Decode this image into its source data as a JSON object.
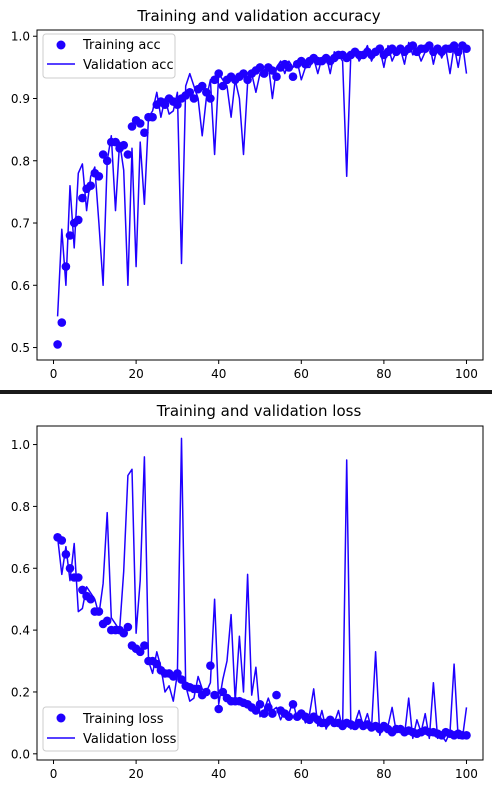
{
  "colors": {
    "series": "#1f00ff",
    "divider": "#1a1a1a"
  },
  "chart_data": [
    {
      "type": "line",
      "title": "Training and validation accuracy",
      "xlabel": "",
      "ylabel": "",
      "xlim": [
        -4,
        104
      ],
      "ylim": [
        0.48,
        1.01
      ],
      "xticks": [
        0,
        20,
        40,
        60,
        80,
        100
      ],
      "yticks": [
        0.5,
        0.6,
        0.7,
        0.8,
        0.9,
        1.0
      ],
      "ytick_labels": [
        "0.5",
        "0.6",
        "0.7",
        "0.8",
        "0.9",
        "1.0"
      ],
      "grid": false,
      "legend": "top-left",
      "series": [
        {
          "name": "Training acc",
          "style": "dots",
          "x": [
            1,
            2,
            3,
            4,
            5,
            6,
            7,
            8,
            9,
            10,
            11,
            12,
            13,
            14,
            15,
            16,
            17,
            18,
            19,
            20,
            21,
            22,
            23,
            24,
            25,
            26,
            27,
            28,
            29,
            30,
            31,
            32,
            33,
            34,
            35,
            36,
            37,
            38,
            39,
            40,
            41,
            42,
            43,
            44,
            45,
            46,
            47,
            48,
            49,
            50,
            51,
            52,
            53,
            54,
            55,
            56,
            57,
            58,
            59,
            60,
            61,
            62,
            63,
            64,
            65,
            66,
            67,
            68,
            69,
            70,
            71,
            72,
            73,
            74,
            75,
            76,
            77,
            78,
            79,
            80,
            81,
            82,
            83,
            84,
            85,
            86,
            87,
            88,
            89,
            90,
            91,
            92,
            93,
            94,
            95,
            96,
            97,
            98,
            99,
            100
          ],
          "values": [
            0.505,
            0.54,
            0.63,
            0.68,
            0.7,
            0.705,
            0.74,
            0.755,
            0.76,
            0.78,
            0.775,
            0.81,
            0.8,
            0.83,
            0.83,
            0.82,
            0.825,
            0.81,
            0.855,
            0.865,
            0.86,
            0.845,
            0.87,
            0.87,
            0.89,
            0.895,
            0.89,
            0.9,
            0.895,
            0.89,
            0.9,
            0.905,
            0.91,
            0.9,
            0.915,
            0.92,
            0.91,
            0.9,
            0.93,
            0.94,
            0.92,
            0.93,
            0.935,
            0.93,
            0.935,
            0.94,
            0.93,
            0.94,
            0.945,
            0.95,
            0.94,
            0.95,
            0.945,
            0.935,
            0.95,
            0.955,
            0.95,
            0.935,
            0.955,
            0.96,
            0.955,
            0.96,
            0.965,
            0.96,
            0.96,
            0.965,
            0.96,
            0.965,
            0.97,
            0.97,
            0.965,
            0.97,
            0.975,
            0.97,
            0.97,
            0.975,
            0.97,
            0.975,
            0.98,
            0.97,
            0.975,
            0.98,
            0.975,
            0.98,
            0.975,
            0.98,
            0.985,
            0.975,
            0.98,
            0.98,
            0.985,
            0.975,
            0.98,
            0.975,
            0.98,
            0.98,
            0.985,
            0.975,
            0.985,
            0.98
          ]
        },
        {
          "name": "Validation acc",
          "style": "line",
          "x": [
            1,
            2,
            3,
            4,
            5,
            6,
            7,
            8,
            9,
            10,
            11,
            12,
            13,
            14,
            15,
            16,
            17,
            18,
            19,
            20,
            21,
            22,
            23,
            24,
            25,
            26,
            27,
            28,
            29,
            30,
            31,
            32,
            33,
            34,
            35,
            36,
            37,
            38,
            39,
            40,
            41,
            42,
            43,
            44,
            45,
            46,
            47,
            48,
            49,
            50,
            51,
            52,
            53,
            54,
            55,
            56,
            57,
            58,
            59,
            60,
            61,
            62,
            63,
            64,
            65,
            66,
            67,
            68,
            69,
            70,
            71,
            72,
            73,
            74,
            75,
            76,
            77,
            78,
            79,
            80,
            81,
            82,
            83,
            84,
            85,
            86,
            87,
            88,
            89,
            90,
            91,
            92,
            93,
            94,
            95,
            96,
            97,
            98,
            99,
            100
          ],
          "values": [
            0.55,
            0.69,
            0.6,
            0.76,
            0.66,
            0.78,
            0.795,
            0.72,
            0.775,
            0.79,
            0.7,
            0.6,
            0.8,
            0.84,
            0.72,
            0.83,
            0.785,
            0.6,
            0.82,
            0.63,
            0.83,
            0.73,
            0.87,
            0.88,
            0.91,
            0.87,
            0.9,
            0.875,
            0.88,
            0.91,
            0.635,
            0.92,
            0.94,
            0.92,
            0.9,
            0.84,
            0.9,
            0.93,
            0.81,
            0.94,
            0.93,
            0.92,
            0.87,
            0.93,
            0.9,
            0.81,
            0.925,
            0.94,
            0.91,
            0.94,
            0.945,
            0.955,
            0.9,
            0.95,
            0.96,
            0.94,
            0.96,
            0.95,
            0.96,
            0.93,
            0.95,
            0.95,
            0.965,
            0.94,
            0.965,
            0.97,
            0.94,
            0.975,
            0.97,
            0.96,
            0.775,
            0.975,
            0.98,
            0.96,
            0.97,
            0.985,
            0.96,
            0.975,
            0.98,
            0.95,
            0.985,
            0.96,
            0.975,
            0.98,
            0.955,
            0.99,
            0.97,
            0.98,
            0.96,
            0.975,
            0.99,
            0.955,
            0.985,
            0.965,
            0.98,
            0.94,
            0.985,
            0.95,
            0.99,
            0.94
          ]
        }
      ]
    },
    {
      "type": "line",
      "title": "Training and validation loss",
      "xlabel": "",
      "ylabel": "",
      "xlim": [
        -4,
        104
      ],
      "ylim": [
        -0.02,
        1.06
      ],
      "xticks": [
        0,
        20,
        40,
        60,
        80,
        100
      ],
      "yticks": [
        0.0,
        0.2,
        0.4,
        0.6,
        0.8,
        1.0
      ],
      "ytick_labels": [
        "0.0",
        "0.2",
        "0.4",
        "0.6",
        "0.8",
        "1.0"
      ],
      "grid": false,
      "legend": "bottom-left",
      "series": [
        {
          "name": "Training loss",
          "style": "dots",
          "x": [
            1,
            2,
            3,
            4,
            5,
            6,
            7,
            8,
            9,
            10,
            11,
            12,
            13,
            14,
            15,
            16,
            17,
            18,
            19,
            20,
            21,
            22,
            23,
            24,
            25,
            26,
            27,
            28,
            29,
            30,
            31,
            32,
            33,
            34,
            35,
            36,
            37,
            38,
            39,
            40,
            41,
            42,
            43,
            44,
            45,
            46,
            47,
            48,
            49,
            50,
            51,
            52,
            53,
            54,
            55,
            56,
            57,
            58,
            59,
            60,
            61,
            62,
            63,
            64,
            65,
            66,
            67,
            68,
            69,
            70,
            71,
            72,
            73,
            74,
            75,
            76,
            77,
            78,
            79,
            80,
            81,
            82,
            83,
            84,
            85,
            86,
            87,
            88,
            89,
            90,
            91,
            92,
            93,
            94,
            95,
            96,
            97,
            98,
            99,
            100
          ],
          "values": [
            0.7,
            0.69,
            0.645,
            0.6,
            0.57,
            0.57,
            0.53,
            0.51,
            0.5,
            0.46,
            0.46,
            0.42,
            0.43,
            0.4,
            0.4,
            0.4,
            0.39,
            0.41,
            0.35,
            0.34,
            0.33,
            0.35,
            0.3,
            0.3,
            0.29,
            0.27,
            0.26,
            0.26,
            0.25,
            0.26,
            0.24,
            0.22,
            0.215,
            0.21,
            0.21,
            0.19,
            0.2,
            0.285,
            0.19,
            0.145,
            0.2,
            0.18,
            0.17,
            0.17,
            0.17,
            0.165,
            0.16,
            0.15,
            0.14,
            0.16,
            0.13,
            0.15,
            0.13,
            0.19,
            0.14,
            0.13,
            0.12,
            0.16,
            0.12,
            0.13,
            0.12,
            0.11,
            0.12,
            0.11,
            0.1,
            0.1,
            0.11,
            0.1,
            0.1,
            0.09,
            0.1,
            0.095,
            0.09,
            0.1,
            0.09,
            0.095,
            0.085,
            0.09,
            0.08,
            0.09,
            0.08,
            0.07,
            0.08,
            0.08,
            0.07,
            0.075,
            0.07,
            0.065,
            0.07,
            0.075,
            0.07,
            0.07,
            0.065,
            0.06,
            0.07,
            0.065,
            0.06,
            0.065,
            0.06,
            0.06
          ]
        },
        {
          "name": "Validation loss",
          "style": "line",
          "x": [
            1,
            2,
            3,
            4,
            5,
            6,
            7,
            8,
            9,
            10,
            11,
            12,
            13,
            14,
            15,
            16,
            17,
            18,
            19,
            20,
            21,
            22,
            23,
            24,
            25,
            26,
            27,
            28,
            29,
            30,
            31,
            32,
            33,
            34,
            35,
            36,
            37,
            38,
            39,
            40,
            41,
            42,
            43,
            44,
            45,
            46,
            47,
            48,
            49,
            50,
            51,
            52,
            53,
            54,
            55,
            56,
            57,
            58,
            59,
            60,
            61,
            62,
            63,
            64,
            65,
            66,
            67,
            68,
            69,
            70,
            71,
            72,
            73,
            74,
            75,
            76,
            77,
            78,
            79,
            80,
            81,
            82,
            83,
            84,
            85,
            86,
            87,
            88,
            89,
            90,
            91,
            92,
            93,
            94,
            95,
            96,
            97,
            98,
            99,
            100
          ],
          "values": [
            0.7,
            0.58,
            0.67,
            0.56,
            0.68,
            0.46,
            0.47,
            0.54,
            0.52,
            0.5,
            0.45,
            0.55,
            0.78,
            0.44,
            0.42,
            0.4,
            0.59,
            0.9,
            0.92,
            0.39,
            0.56,
            0.96,
            0.3,
            0.26,
            0.33,
            0.28,
            0.2,
            0.22,
            0.17,
            0.26,
            1.02,
            0.22,
            0.17,
            0.18,
            0.25,
            0.21,
            0.2,
            0.23,
            0.5,
            0.16,
            0.24,
            0.3,
            0.45,
            0.17,
            0.38,
            0.2,
            0.58,
            0.19,
            0.28,
            0.12,
            0.14,
            0.18,
            0.14,
            0.15,
            0.11,
            0.14,
            0.13,
            0.17,
            0.11,
            0.14,
            0.1,
            0.13,
            0.21,
            0.09,
            0.14,
            0.08,
            0.11,
            0.1,
            0.14,
            0.08,
            0.95,
            0.08,
            0.1,
            0.14,
            0.09,
            0.13,
            0.08,
            0.33,
            0.06,
            0.1,
            0.09,
            0.15,
            0.07,
            0.08,
            0.06,
            0.18,
            0.05,
            0.11,
            0.07,
            0.13,
            0.05,
            0.23,
            0.05,
            0.06,
            0.04,
            0.07,
            0.29,
            0.05,
            0.05,
            0.15
          ]
        }
      ]
    }
  ]
}
